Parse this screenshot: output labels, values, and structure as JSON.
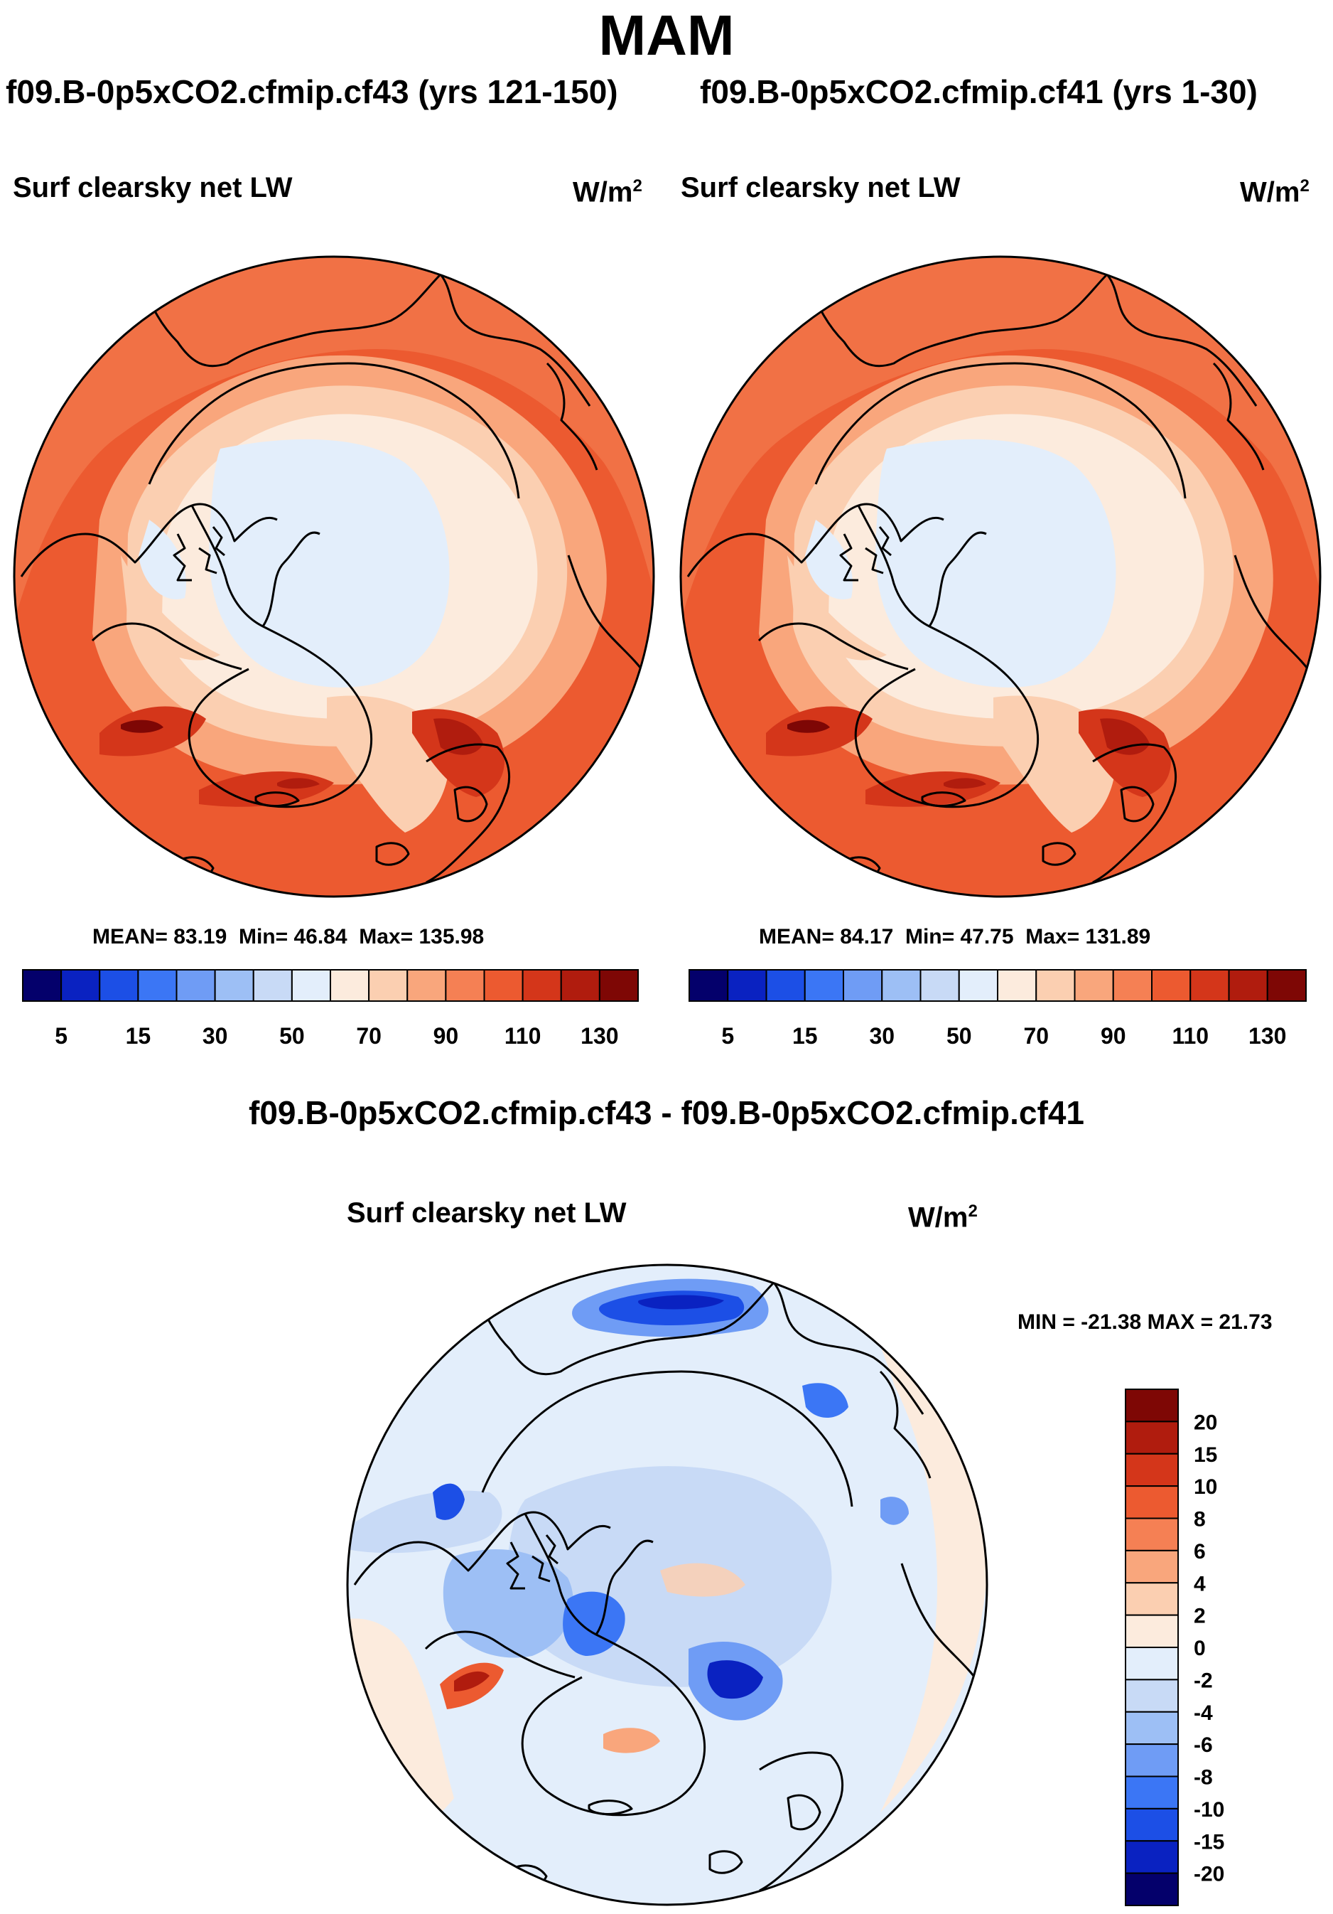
{
  "figure_title": "MAM",
  "panels": [
    {
      "run_title": "f09.B-0p5xCO2.cfmip.cf43 (yrs 121-150)",
      "variable": "Surf clearsky net LW",
      "units_base": "W/m",
      "units_exp": "2",
      "stats": {
        "mean_label": "MEAN=",
        "mean": "83.19",
        "min_label": "Min=",
        "min": "46.84",
        "max_label": "Max=",
        "max": "135.98"
      }
    },
    {
      "run_title": "f09.B-0p5xCO2.cfmip.cf41 (yrs 1-30)",
      "variable": "Surf clearsky net LW",
      "units_base": "W/m",
      "units_exp": "2",
      "stats": {
        "mean_label": "MEAN=",
        "mean": "84.17",
        "min_label": "Min=",
        "min": "47.75",
        "max_label": "Max=",
        "max": "131.89"
      }
    }
  ],
  "difference_panel": {
    "run_title": "f09.B-0p5xCO2.cfmip.cf43 - f09.B-0p5xCO2.cfmip.cf41",
    "variable": "Surf clearsky net LW",
    "units_base": "W/m",
    "units_exp": "2",
    "stats_text": "MIN = -21.38 MAX =  21.73"
  },
  "chart_data": [
    {
      "type": "heatmap",
      "projection": "north-polar-stereographic",
      "title": "Surf clearsky net LW",
      "units": "W/m2",
      "subtitle": "f09.B-0p5xCO2.cfmip.cf43 (yrs 121-150)",
      "mean": 83.19,
      "min": 46.84,
      "max": 135.98,
      "colorbar_orientation": "horizontal",
      "colorbar_tick_labels": [
        "5",
        "15",
        "30",
        "50",
        "70",
        "90",
        "110",
        "130"
      ],
      "colors": [
        "#04006b",
        "#0a22c1",
        "#1c4fe6",
        "#3b76f5",
        "#6f9cf5",
        "#9dbff5",
        "#c8daf6",
        "#e3eefb",
        "#fcebdd",
        "#fbcfb1",
        "#f9a67c",
        "#f58054",
        "#ec5a30",
        "#d4361a",
        "#b01c0e",
        "#7e0705"
      ]
    },
    {
      "type": "heatmap",
      "projection": "north-polar-stereographic",
      "title": "Surf clearsky net LW",
      "units": "W/m2",
      "subtitle": "f09.B-0p5xCO2.cfmip.cf41 (yrs 1-30)",
      "mean": 84.17,
      "min": 47.75,
      "max": 131.89,
      "colorbar_orientation": "horizontal",
      "colorbar_tick_labels": [
        "5",
        "15",
        "30",
        "50",
        "70",
        "90",
        "110",
        "130"
      ],
      "colors": [
        "#04006b",
        "#0a22c1",
        "#1c4fe6",
        "#3b76f5",
        "#6f9cf5",
        "#9dbff5",
        "#c8daf6",
        "#e3eefb",
        "#fcebdd",
        "#fbcfb1",
        "#f9a67c",
        "#f58054",
        "#ec5a30",
        "#d4361a",
        "#b01c0e",
        "#7e0705"
      ]
    },
    {
      "type": "heatmap",
      "projection": "north-polar-stereographic",
      "title": "Surf clearsky net LW",
      "units": "W/m2",
      "subtitle": "f09.B-0p5xCO2.cfmip.cf43 - f09.B-0p5xCO2.cfmip.cf41",
      "min": -21.38,
      "max": 21.73,
      "colorbar_orientation": "vertical",
      "colorbar_tick_labels": [
        "20",
        "15",
        "10",
        "8",
        "6",
        "4",
        "2",
        "0",
        "-2",
        "-4",
        "-6",
        "-8",
        "-10",
        "-15",
        "-20"
      ],
      "colors": [
        "#7e0705",
        "#b01c0e",
        "#d4361a",
        "#ec5a30",
        "#f58054",
        "#f9a67c",
        "#fbcfb1",
        "#fcebdd",
        "#e3eefb",
        "#c8daf6",
        "#9dbff5",
        "#6f9cf5",
        "#3b76f5",
        "#1c4fe6",
        "#0a22c1",
        "#04006b"
      ]
    }
  ]
}
